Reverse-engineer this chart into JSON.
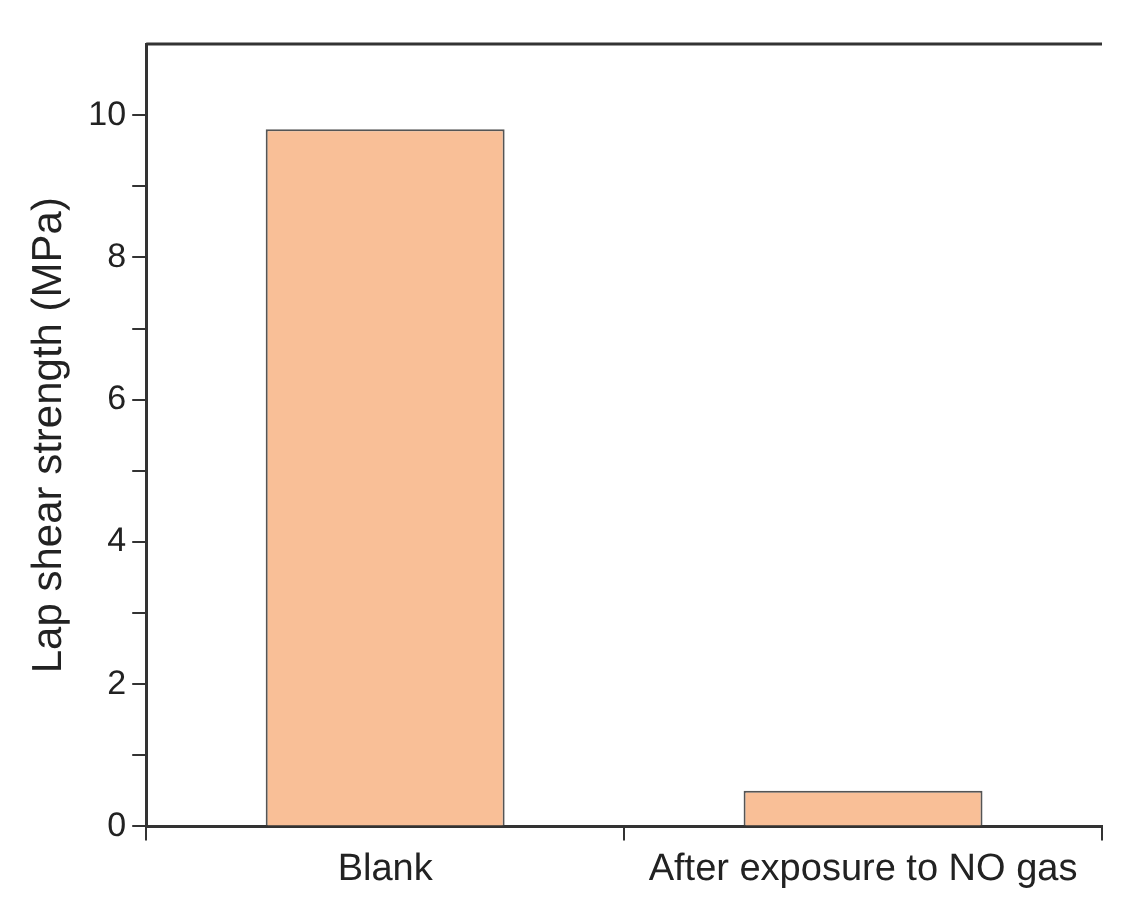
{
  "chart_data": {
    "type": "bar",
    "ylabel": "Lap shear strength (MPa)",
    "categories": [
      "Blank",
      "After exposure to NO gas"
    ],
    "values": [
      9.8,
      0.5
    ],
    "color": "#f9bf97",
    "ylim": [
      0,
      11
    ],
    "yticks": [
      0,
      {
        "value": 1,
        "label": null
      },
      2,
      {
        "value": 3,
        "label": null
      },
      4,
      {
        "value": 5,
        "label": null
      },
      6,
      {
        "value": 7,
        "label": null
      },
      8,
      {
        "value": 9,
        "label": null
      },
      10
    ],
    "grid": false,
    "legend": false
  }
}
